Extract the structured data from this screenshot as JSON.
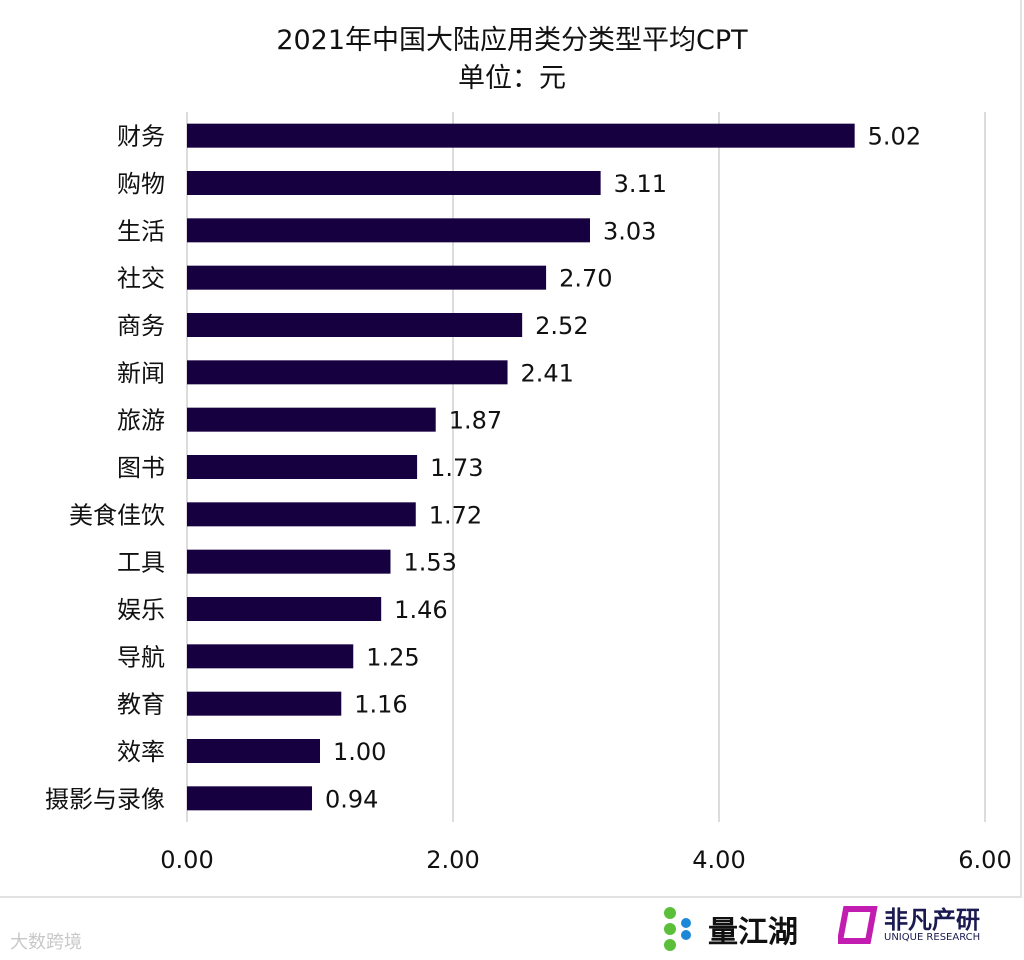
{
  "chart_data": {
    "type": "bar",
    "orientation": "horizontal",
    "title": "2021年中国大陆应用类分类型平均CPT",
    "subtitle": "单位：元",
    "categories": [
      "财务",
      "购物",
      "生活",
      "社交",
      "商务",
      "新闻",
      "旅游",
      "图书",
      "美食佳饮",
      "工具",
      "娱乐",
      "导航",
      "教育",
      "效率",
      "摄影与录像"
    ],
    "values": [
      5.02,
      3.11,
      3.03,
      2.7,
      2.52,
      2.41,
      1.87,
      1.73,
      1.72,
      1.53,
      1.46,
      1.25,
      1.16,
      1.0,
      0.94
    ],
    "xlim": [
      0,
      6
    ],
    "xticks": [
      "0.00",
      "2.00",
      "4.00",
      "6.00"
    ],
    "grid": true,
    "bar_color": "#170040"
  },
  "footer": {
    "watermark": "大数跨境",
    "logo1": "量江湖",
    "logo2_cn": "非凡产研",
    "logo2_en": "UNIQUE RESEARCH"
  }
}
